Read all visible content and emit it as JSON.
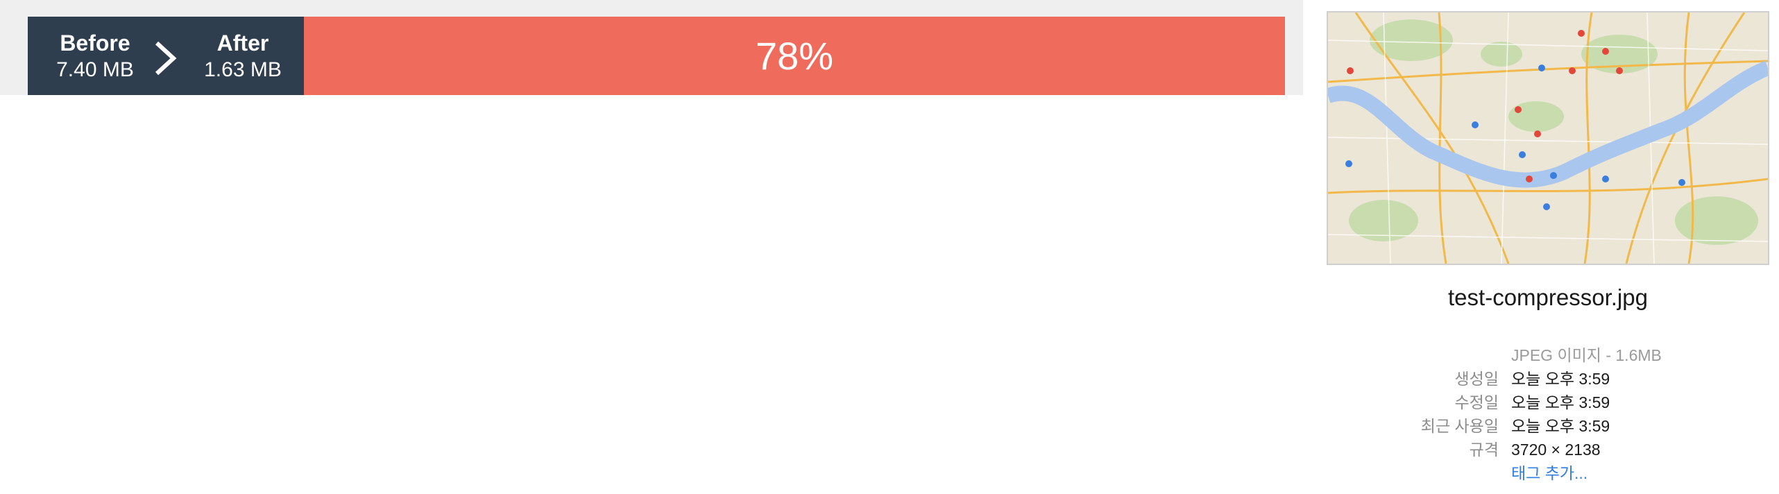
{
  "compression": {
    "before_label": "Before",
    "before_size": "7.40 MB",
    "after_label": "After",
    "after_size": "1.63 MB",
    "savings": "78%"
  },
  "file_info": {
    "thumbnail_icon": "seoul-map-thumbnail",
    "filename": "test-compressor.jpg",
    "kind": "JPEG 이미지 - 1.6MB",
    "rows": [
      {
        "key": "생성일",
        "value": "오늘 오후 3:59"
      },
      {
        "key": "수정일",
        "value": "오늘 오후 3:59"
      },
      {
        "key": "최근 사용일",
        "value": "오늘 오후 3:59"
      },
      {
        "key": "규격",
        "value": "3720 × 2138"
      }
    ],
    "add_tags": "태그 추가..."
  },
  "colors": {
    "size_panel": "#2f3e4e",
    "savings_bar": "#ef6b5b",
    "link": "#2f7de1"
  }
}
